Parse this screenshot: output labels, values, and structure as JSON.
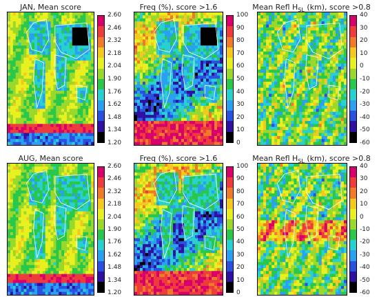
{
  "chart_data": [
    {
      "type": "heatmap",
      "title": "JAN, Mean score",
      "colorbar_ticks": [
        "2.60",
        "2.46",
        "2.32",
        "2.18",
        "2.04",
        "1.90",
        "1.76",
        "1.62",
        "1.48",
        "1.34",
        "1.20"
      ]
    },
    {
      "type": "heatmap",
      "title": "Freq (%), score >1.6",
      "colorbar_ticks": [
        "100",
        "90",
        "80",
        "70",
        "60",
        "50",
        "40",
        "30",
        "20",
        "10",
        "0"
      ]
    },
    {
      "type": "heatmap",
      "title_main": "Mean Refl H",
      "title_sub": "SL",
      "title_tail": " (km), score >0.8",
      "colorbar_ticks": [
        "40",
        "30",
        "20",
        "10",
        "0",
        "-10",
        "-20",
        "-30",
        "-40",
        "-50",
        "-60"
      ]
    },
    {
      "type": "heatmap",
      "title": "AUG, Mean score",
      "colorbar_ticks": [
        "2.60",
        "2.46",
        "2.32",
        "2.18",
        "2.04",
        "1.90",
        "1.76",
        "1.62",
        "1.48",
        "1.34",
        "1.20"
      ]
    },
    {
      "type": "heatmap",
      "title": "Freq (%), score >1.6",
      "colorbar_ticks": [
        "100",
        "90",
        "80",
        "70",
        "60",
        "50",
        "40",
        "30",
        "20",
        "10",
        "0"
      ]
    },
    {
      "type": "heatmap",
      "title_main": "Mean Refl H",
      "title_sub": "SL",
      "title_tail": " (km), score >0.8",
      "colorbar_ticks": [
        "40",
        "30",
        "20",
        "10",
        "0",
        "-10",
        "-20",
        "-30",
        "-40",
        "-50",
        "-60"
      ]
    }
  ],
  "colorscale": [
    "#d8006c",
    "#ee3c3c",
    "#f07a2a",
    "#f5c81e",
    "#e8f020",
    "#9ad82c",
    "#2ac84a",
    "#28d0d0",
    "#2aa0f0",
    "#2a50e0",
    "#3010a0",
    "#000000"
  ]
}
